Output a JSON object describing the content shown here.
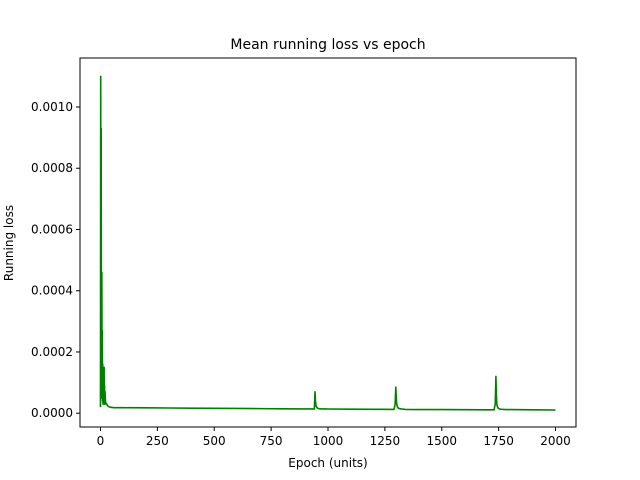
{
  "chart_data": {
    "type": "line",
    "title": "Mean running loss vs epoch",
    "xlabel": "Epoch (units)",
    "ylabel": "Running loss",
    "xlim": [
      -90,
      2090
    ],
    "ylim": [
      -4.5e-05,
      0.00116
    ],
    "grid": false,
    "x_ticks": [
      0,
      250,
      500,
      750,
      1000,
      1250,
      1500,
      1750,
      2000
    ],
    "x_tick_labels": [
      "0",
      "250",
      "500",
      "750",
      "1000",
      "1250",
      "1500",
      "1750",
      "2000"
    ],
    "y_ticks": [
      0.0,
      0.0002,
      0.0004,
      0.0006,
      0.0008,
      0.001
    ],
    "y_tick_labels": [
      "0.0000",
      "0.0002",
      "0.0004",
      "0.0006",
      "0.0008",
      "0.0010"
    ],
    "series": [
      {
        "color": "#008000",
        "x": [
          0,
          1,
          2,
          3,
          4,
          5,
          6,
          7,
          8,
          9,
          10,
          11,
          12,
          13,
          14,
          15,
          16,
          17,
          18,
          19,
          20,
          22,
          24,
          26,
          28,
          30,
          35,
          40,
          50,
          60,
          80,
          100,
          200,
          300,
          400,
          500,
          600,
          700,
          800,
          900,
          940,
          943,
          945,
          947,
          950,
          955,
          960,
          970,
          990,
          1000,
          1100,
          1200,
          1290,
          1295,
          1298,
          1300,
          1302,
          1305,
          1310,
          1320,
          1340,
          1400,
          1500,
          1600,
          1700,
          1730,
          1735,
          1738,
          1740,
          1742,
          1745,
          1750,
          1760,
          1780,
          1800,
          1900,
          2000
        ],
        "y": [
          2e-05,
          0.0011,
          0.0003,
          0.00093,
          0.00015,
          5e-05,
          0.00046,
          8e-05,
          0.00027,
          4e-05,
          0.00016,
          3e-05,
          0.00012,
          3.5e-05,
          7e-05,
          3e-05,
          0.00015,
          4e-05,
          9e-05,
          3e-05,
          7e-05,
          4e-05,
          3e-05,
          3e-05,
          3e-05,
          2.5e-05,
          2.2e-05,
          2e-05,
          1.9e-05,
          1.8e-05,
          1.8e-05,
          1.8e-05,
          1.75e-05,
          1.7e-05,
          1.65e-05,
          1.6e-05,
          1.55e-05,
          1.5e-05,
          1.45e-05,
          1.4e-05,
          1.4e-05,
          7e-05,
          4e-05,
          2.5e-05,
          2e-05,
          1.6e-05,
          1.5e-05,
          1.4e-05,
          1.4e-05,
          1.38e-05,
          1.33e-05,
          1.28e-05,
          1.25e-05,
          3e-05,
          8.5e-05,
          5e-05,
          3e-05,
          2e-05,
          1.6e-05,
          1.4e-05,
          1.25e-05,
          1.2e-05,
          1.18e-05,
          1.15e-05,
          1.12e-05,
          1.12e-05,
          3e-05,
          0.00012,
          6e-05,
          3e-05,
          2e-05,
          1.5e-05,
          1.3e-05,
          1.2e-05,
          1.18e-05,
          1.12e-05,
          1.05e-05
        ]
      }
    ]
  }
}
